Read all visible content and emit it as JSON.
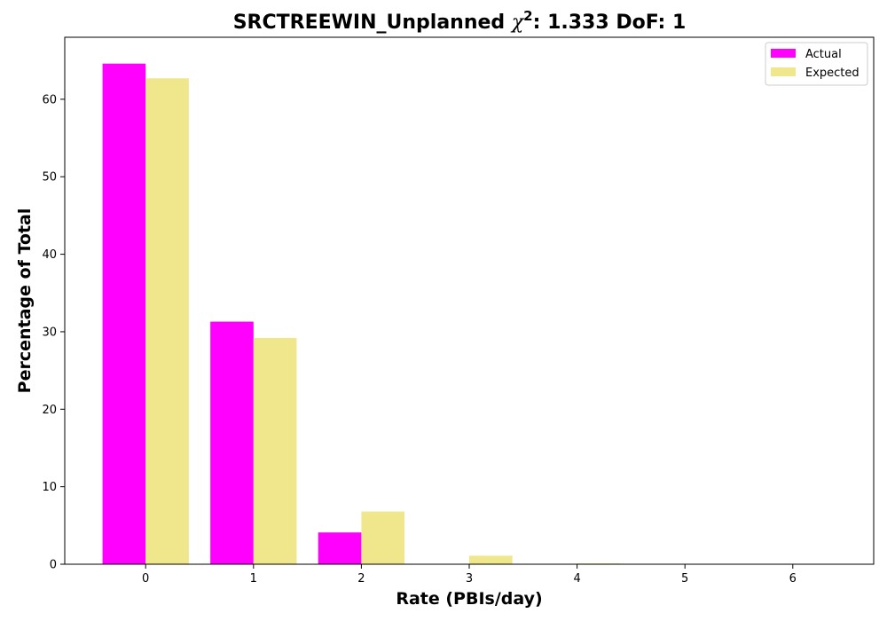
{
  "chart_data": {
    "type": "bar",
    "title_prefix": "SRCTREEWIN_Unplanned ",
    "title_chi": "χ",
    "title_exp": "2",
    "title_suffix": ": 1.333 DoF: 1",
    "xlabel": "Rate (PBIs/day)",
    "ylabel": "Percentage of Total",
    "categories": [
      "0",
      "1",
      "2",
      "3",
      "4",
      "5",
      "6"
    ],
    "xlim": [
      -0.75,
      6.75
    ],
    "ylim": [
      0,
      68
    ],
    "yticks": [
      0,
      10,
      20,
      30,
      40,
      50,
      60
    ],
    "grid": false,
    "legend_position": "top-right",
    "series": [
      {
        "name": "Actual",
        "color": "#ff00ff",
        "values": [
          64.6,
          31.3,
          4.1,
          0,
          0,
          0,
          0
        ]
      },
      {
        "name": "Expected",
        "color": "#f0e68c",
        "values": [
          62.7,
          29.2,
          6.8,
          1.1,
          0.1,
          0,
          0
        ]
      }
    ]
  }
}
